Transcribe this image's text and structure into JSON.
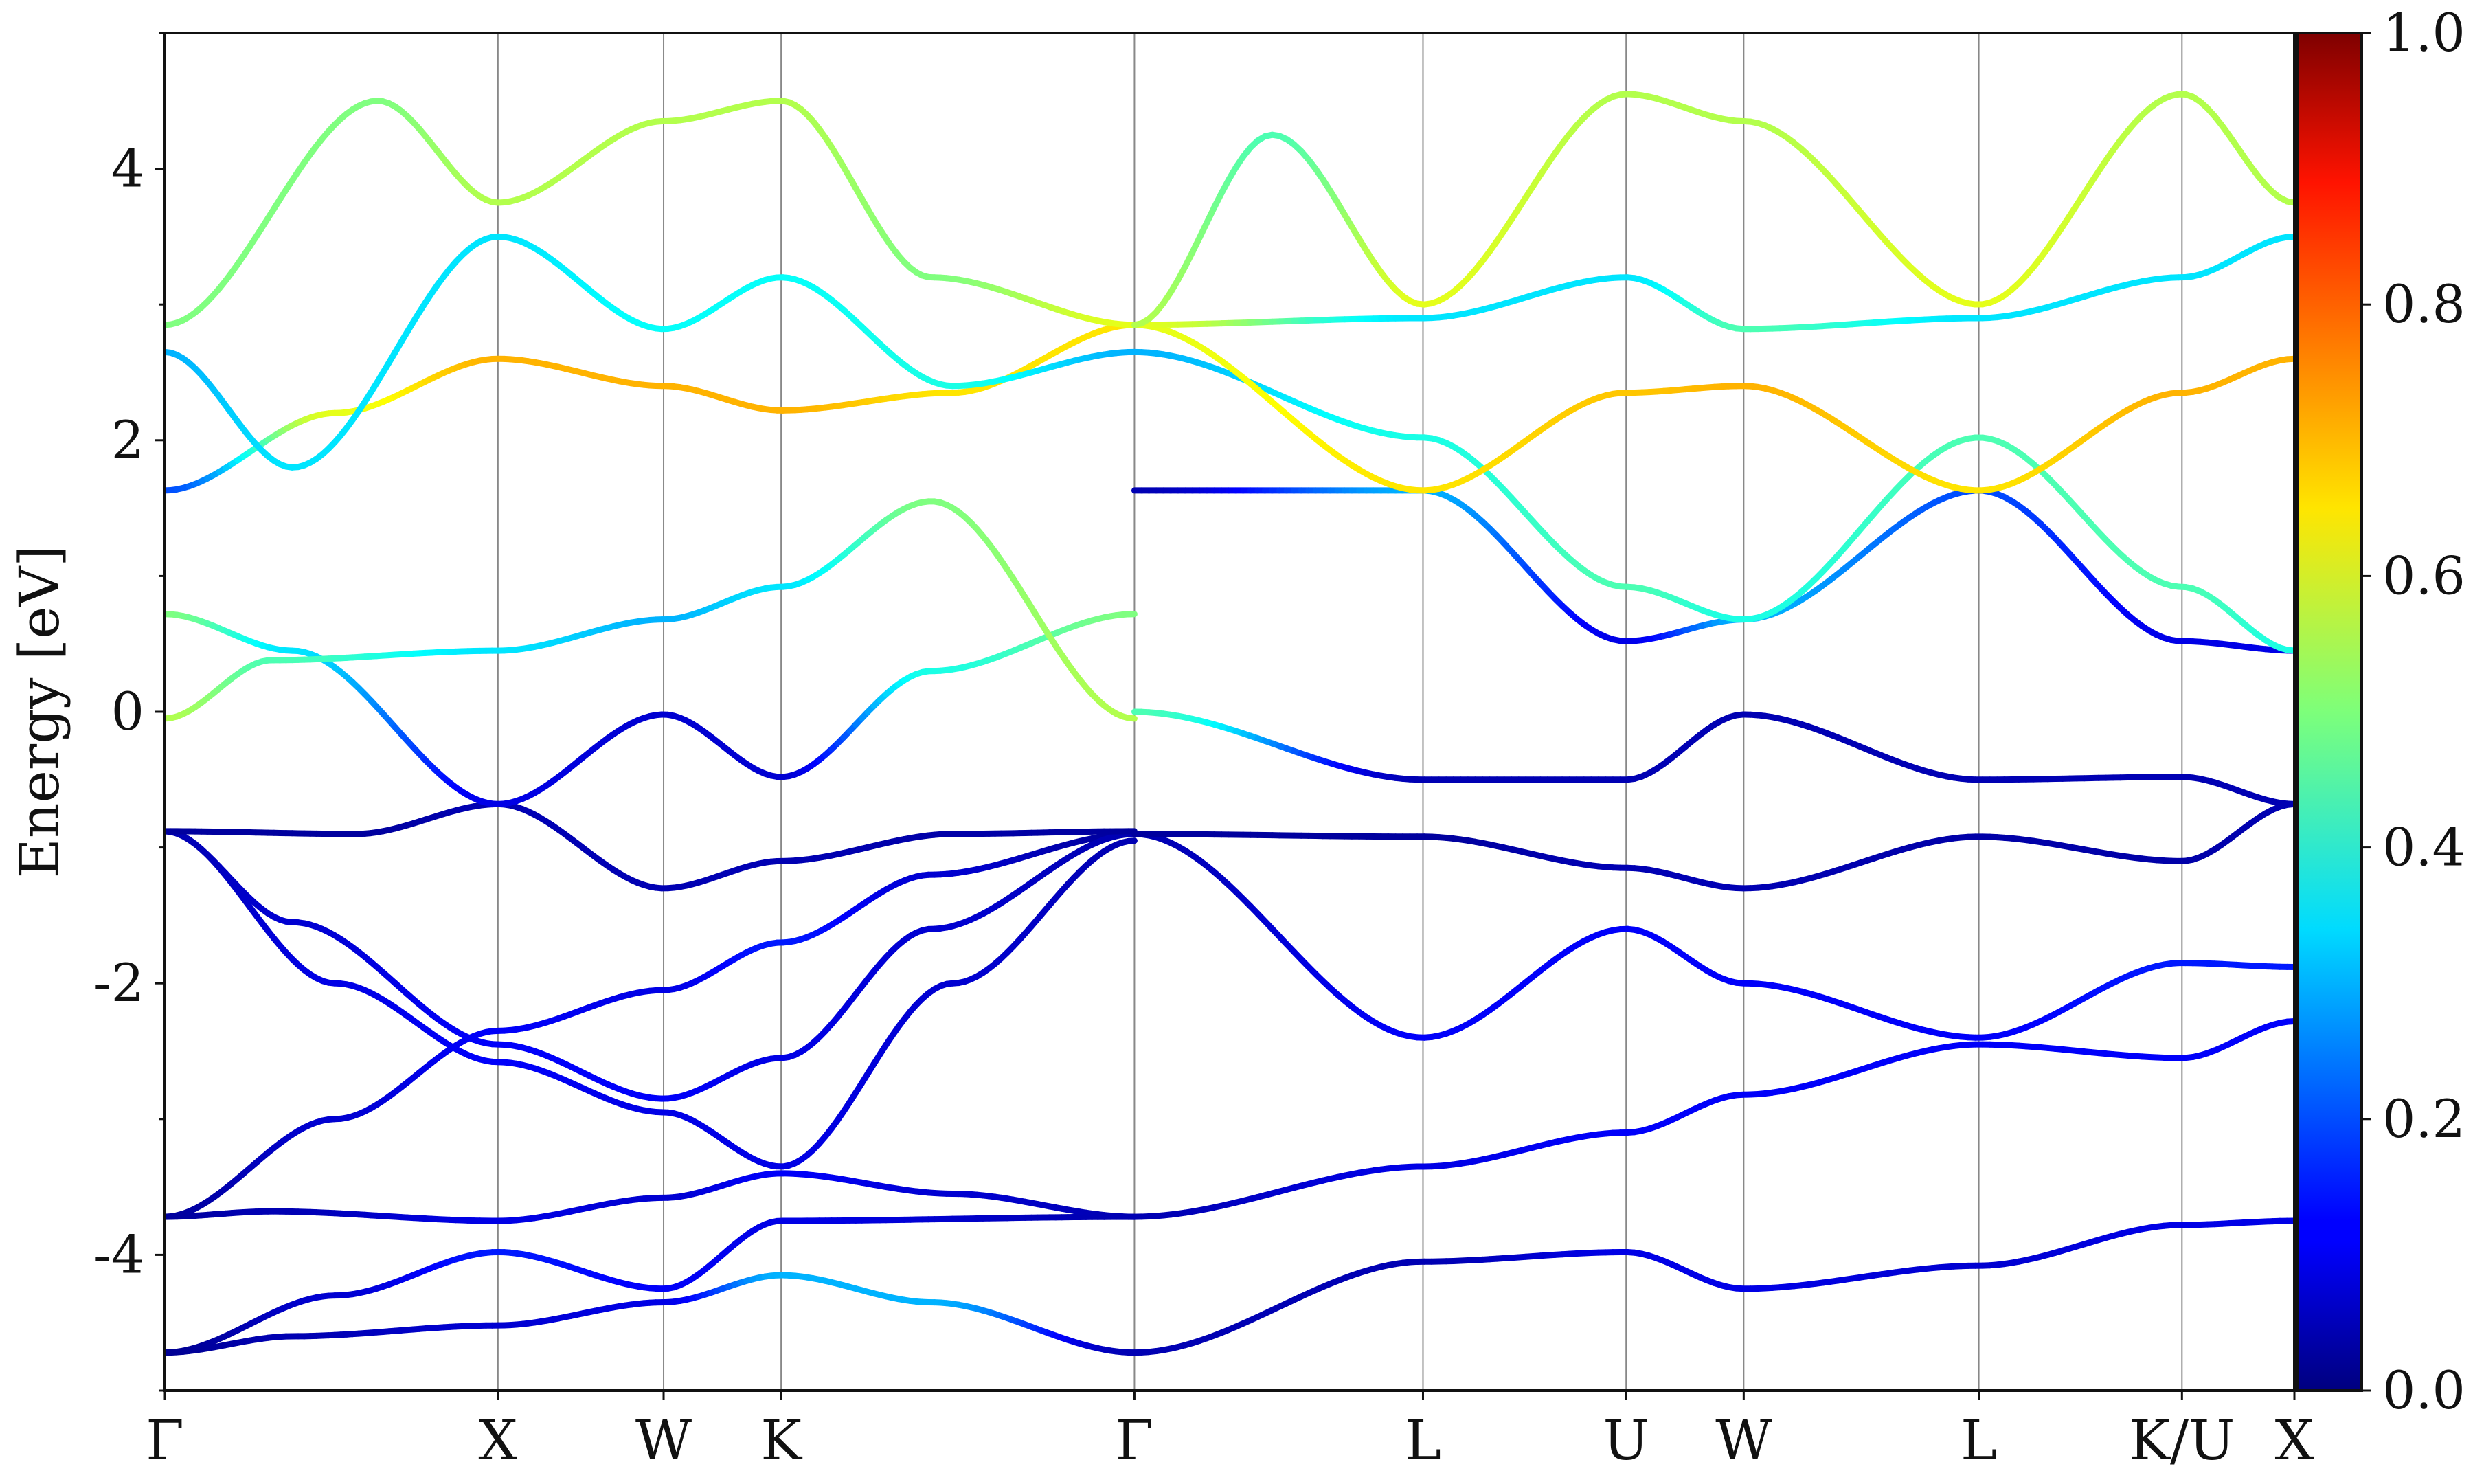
{
  "chart_data": {
    "type": "line",
    "title": "",
    "xlabel": "",
    "ylabel": "Energy [eV]",
    "ylim": [
      -5,
      5
    ],
    "y_ticks": [
      -4,
      -2,
      0,
      2,
      4
    ],
    "x_ticks": [
      {
        "label": "Γ",
        "x": 0.0
      },
      {
        "label": "X",
        "x": 0.1564
      },
      {
        "label": "W",
        "x": 0.2342
      },
      {
        "label": "K",
        "x": 0.2894
      },
      {
        "label": "Γ",
        "x": 0.4553
      },
      {
        "label": "L",
        "x": 0.5908
      },
      {
        "label": "U",
        "x": 0.6862
      },
      {
        "label": "W",
        "x": 0.7414
      },
      {
        "label": "L",
        "x": 0.8518
      },
      {
        "label": "K/U",
        "x": 0.9472
      },
      {
        "label": "X",
        "x": 1.0
      }
    ],
    "colorbar": {
      "colormap": "jet",
      "range": [
        0.0,
        1.0
      ],
      "tick_labels": [
        "0.0",
        "0.2",
        "0.4",
        "0.6",
        "0.8",
        "1.0"
      ]
    },
    "series": [
      {
        "values": [
          [
            0.0,
            -4.72
          ],
          [
            0.06,
            -4.6
          ],
          [
            0.1564,
            -4.52
          ],
          [
            0.2342,
            -4.35
          ],
          [
            0.2894,
            -4.15
          ],
          [
            0.36,
            -4.35
          ],
          [
            0.4553,
            -4.72
          ]
        ],
        "weights": [
          0.02,
          0.05,
          0.08,
          0.1,
          0.3,
          0.3,
          0.05
        ]
      },
      {
        "values": [
          [
            0.0,
            -4.72
          ],
          [
            0.08,
            -4.3
          ],
          [
            0.1564,
            -3.98
          ],
          [
            0.2342,
            -4.25
          ],
          [
            0.2894,
            -3.75
          ],
          [
            0.4553,
            -3.72
          ]
        ],
        "weights": [
          0.02,
          0.08,
          0.15,
          0.12,
          0.1,
          0.05
        ]
      },
      {
        "values": [
          [
            0.0,
            -3.72
          ],
          [
            0.05,
            -3.68
          ],
          [
            0.1564,
            -3.75
          ],
          [
            0.2342,
            -3.58
          ],
          [
            0.2894,
            -3.4
          ],
          [
            0.37,
            -3.55
          ],
          [
            0.4553,
            -3.72
          ]
        ],
        "weights": [
          0.03,
          0.05,
          0.1,
          0.08,
          0.12,
          0.08,
          0.05
        ]
      },
      {
        "values": [
          [
            0.0,
            -3.72
          ],
          [
            0.08,
            -3.0
          ],
          [
            0.1564,
            -2.35
          ],
          [
            0.2342,
            -2.05
          ],
          [
            0.2894,
            -1.7
          ],
          [
            0.36,
            -1.2
          ],
          [
            0.4553,
            -0.9
          ]
        ],
        "weights": [
          0.03,
          0.08,
          0.12,
          0.1,
          0.15,
          0.08,
          0.03
        ]
      },
      {
        "values": [
          [
            0.0,
            -0.88
          ],
          [
            0.06,
            -1.55
          ],
          [
            0.1564,
            -2.45
          ],
          [
            0.2342,
            -2.85
          ],
          [
            0.2894,
            -2.55
          ],
          [
            0.36,
            -1.6
          ],
          [
            0.4553,
            -0.9
          ]
        ],
        "weights": [
          0.05,
          0.08,
          0.12,
          0.12,
          0.1,
          0.08,
          0.05
        ]
      },
      {
        "values": [
          [
            0.0,
            -0.88
          ],
          [
            0.08,
            -2.0
          ],
          [
            0.1564,
            -2.58
          ],
          [
            0.2342,
            -2.95
          ],
          [
            0.2894,
            -3.35
          ],
          [
            0.37,
            -2.0
          ],
          [
            0.4553,
            -0.95
          ]
        ],
        "weights": [
          0.05,
          0.1,
          0.12,
          0.1,
          0.1,
          0.08,
          0.05
        ]
      },
      {
        "values": [
          [
            0.0,
            -0.88
          ],
          [
            0.09,
            -0.9
          ],
          [
            0.1564,
            -0.68
          ],
          [
            0.2342,
            -1.3
          ],
          [
            0.2894,
            -1.1
          ],
          [
            0.37,
            -0.9
          ],
          [
            0.4553,
            -0.88
          ]
        ],
        "weights": [
          0.03,
          0.03,
          0.05,
          0.05,
          0.05,
          0.04,
          0.03
        ]
      },
      {
        "values": [
          [
            0.0,
            0.72
          ],
          [
            0.06,
            0.45
          ],
          [
            0.1564,
            -0.68
          ],
          [
            0.2342,
            -0.02
          ],
          [
            0.2894,
            -0.48
          ],
          [
            0.36,
            0.3
          ],
          [
            0.4553,
            0.72
          ]
        ],
        "weights": [
          0.5,
          0.35,
          0.1,
          0.08,
          0.08,
          0.4,
          0.5
        ]
      },
      {
        "values": [
          [
            0.0,
            -0.05
          ],
          [
            0.05,
            0.38
          ],
          [
            0.1564,
            0.45
          ],
          [
            0.2342,
            0.68
          ],
          [
            0.2894,
            0.92
          ],
          [
            0.36,
            1.55
          ],
          [
            0.4553,
            -0.05
          ]
        ],
        "weights": [
          0.55,
          0.45,
          0.35,
          0.3,
          0.35,
          0.5,
          0.55
        ]
      },
      {
        "values": [
          [
            0.0,
            1.63
          ],
          [
            0.08,
            2.2
          ],
          [
            0.1564,
            2.6
          ],
          [
            0.2342,
            2.4
          ],
          [
            0.2894,
            2.22
          ],
          [
            0.37,
            2.35
          ],
          [
            0.4553,
            2.85
          ]
        ],
        "weights": [
          0.2,
          0.6,
          0.7,
          0.7,
          0.7,
          0.65,
          0.65
        ]
      },
      {
        "values": [
          [
            0.0,
            2.65
          ],
          [
            0.06,
            1.8
          ],
          [
            0.1564,
            3.5
          ],
          [
            0.2342,
            2.82
          ],
          [
            0.2894,
            3.2
          ],
          [
            0.37,
            2.4
          ],
          [
            0.4553,
            2.65
          ]
        ],
        "weights": [
          0.3,
          0.35,
          0.35,
          0.38,
          0.38,
          0.4,
          0.3
        ]
      },
      {
        "values": [
          [
            0.0,
            2.85
          ],
          [
            0.1,
            4.5
          ],
          [
            0.1564,
            3.75
          ],
          [
            0.2342,
            4.35
          ],
          [
            0.2894,
            4.5
          ],
          [
            0.36,
            3.2
          ],
          [
            0.4553,
            2.85
          ]
        ],
        "weights": [
          0.5,
          0.5,
          0.55,
          0.55,
          0.55,
          0.5,
          0.6
        ]
      },
      {
        "values": [
          [
            0.4553,
            -4.72
          ],
          [
            0.5908,
            -4.05
          ],
          [
            0.6862,
            -3.98
          ],
          [
            0.7414,
            -4.25
          ],
          [
            0.8518,
            -4.08
          ],
          [
            0.9472,
            -3.78
          ],
          [
            1.0,
            -3.75
          ]
        ],
        "weights": [
          0.05,
          0.05,
          0.1,
          0.1,
          0.08,
          0.1,
          0.1
        ]
      },
      {
        "values": [
          [
            0.4553,
            -3.72
          ],
          [
            0.5908,
            -3.35
          ],
          [
            0.6862,
            -3.1
          ],
          [
            0.7414,
            -2.82
          ],
          [
            0.8518,
            -2.45
          ],
          [
            0.9472,
            -2.55
          ],
          [
            1.0,
            -2.28
          ]
        ],
        "weights": [
          0.05,
          0.1,
          0.12,
          0.12,
          0.12,
          0.12,
          0.12
        ]
      },
      {
        "values": [
          [
            0.4553,
            -0.9
          ],
          [
            0.5908,
            -2.4
          ],
          [
            0.6862,
            -1.6
          ],
          [
            0.7414,
            -2.0
          ],
          [
            0.8518,
            -2.4
          ],
          [
            0.9472,
            -1.85
          ],
          [
            1.0,
            -1.88
          ]
        ],
        "weights": [
          0.05,
          0.12,
          0.12,
          0.12,
          0.12,
          0.15,
          0.15
        ]
      },
      {
        "values": [
          [
            0.4553,
            -0.9
          ],
          [
            0.5908,
            -0.92
          ],
          [
            0.6862,
            -1.15
          ],
          [
            0.7414,
            -1.3
          ],
          [
            0.8518,
            -0.92
          ],
          [
            0.9472,
            -1.1
          ],
          [
            1.0,
            -0.68
          ]
        ],
        "weights": [
          0.03,
          0.03,
          0.05,
          0.05,
          0.04,
          0.04,
          0.05
        ]
      },
      {
        "values": [
          [
            0.4553,
            0.0
          ],
          [
            0.5908,
            -0.5
          ],
          [
            0.6862,
            -0.5
          ],
          [
            0.7414,
            -0.02
          ],
          [
            0.8518,
            -0.5
          ],
          [
            0.9472,
            -0.48
          ],
          [
            1.0,
            -0.68
          ]
        ],
        "weights": [
          0.45,
          0.05,
          0.05,
          0.05,
          0.05,
          0.05,
          0.05
        ]
      },
      {
        "values": [
          [
            0.4553,
            1.63
          ],
          [
            0.5908,
            1.63
          ],
          [
            0.6862,
            0.52
          ],
          [
            0.7414,
            0.68
          ],
          [
            0.8518,
            1.63
          ],
          [
            0.9472,
            0.52
          ],
          [
            1.0,
            0.45
          ]
        ],
        "weights": [
          0.05,
          0.3,
          0.1,
          0.3,
          0.2,
          0.1,
          0.1
        ]
      },
      {
        "values": [
          [
            0.4553,
            2.65
          ],
          [
            0.5908,
            2.02
          ],
          [
            0.6862,
            0.92
          ],
          [
            0.7414,
            0.68
          ],
          [
            0.8518,
            2.02
          ],
          [
            0.9472,
            0.92
          ],
          [
            1.0,
            0.45
          ]
        ],
        "weights": [
          0.3,
          0.4,
          0.45,
          0.4,
          0.45,
          0.45,
          0.4
        ]
      },
      {
        "values": [
          [
            0.4553,
            2.85
          ],
          [
            0.5908,
            1.63
          ],
          [
            0.6862,
            2.35
          ],
          [
            0.7414,
            2.4
          ],
          [
            0.8518,
            1.63
          ],
          [
            0.9472,
            2.35
          ],
          [
            1.0,
            2.6
          ]
        ],
        "weights": [
          0.6,
          0.65,
          0.68,
          0.7,
          0.65,
          0.7,
          0.7
        ]
      },
      {
        "values": [
          [
            0.4553,
            2.85
          ],
          [
            0.5908,
            2.9
          ],
          [
            0.6862,
            3.2
          ],
          [
            0.7414,
            2.82
          ],
          [
            0.8518,
            2.9
          ],
          [
            0.9472,
            3.2
          ],
          [
            1.0,
            3.5
          ]
        ],
        "weights": [
          0.6,
          0.35,
          0.35,
          0.45,
          0.35,
          0.35,
          0.35
        ]
      },
      {
        "values": [
          [
            0.4553,
            2.85
          ],
          [
            0.52,
            4.25
          ],
          [
            0.5908,
            3.0
          ],
          [
            0.6862,
            4.55
          ],
          [
            0.7414,
            4.35
          ],
          [
            0.8518,
            3.0
          ],
          [
            0.9472,
            4.55
          ],
          [
            1.0,
            3.75
          ]
        ],
        "weights": [
          0.55,
          0.45,
          0.6,
          0.55,
          0.55,
          0.6,
          0.55,
          0.55
        ]
      }
    ]
  }
}
